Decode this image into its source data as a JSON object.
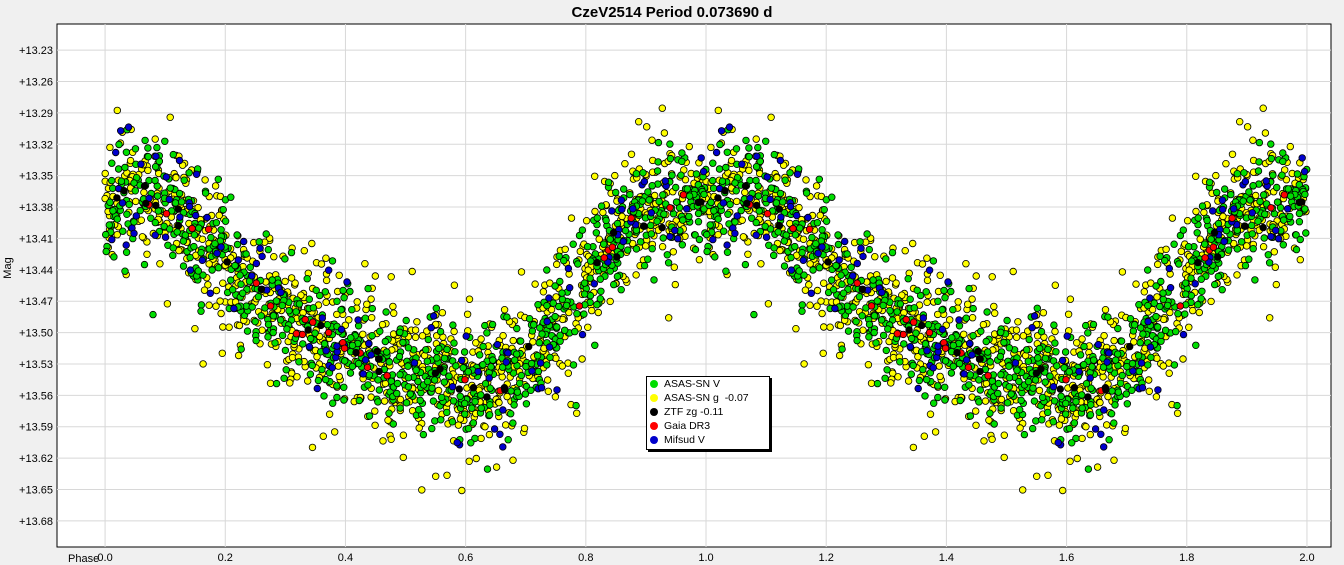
{
  "chart_data": {
    "type": "scatter",
    "title": "CzeV2514 Period 0.073690 d",
    "xlabel": "Phase",
    "ylabel": "Mag",
    "xlim": [
      -0.08,
      2.04
    ],
    "ylim": [
      13.705,
      13.205
    ],
    "y_inverted": true,
    "grid": true,
    "x_ticks": [
      "0.0",
      "0.2",
      "0.4",
      "0.6",
      "0.8",
      "1.0",
      "1.2",
      "1.4",
      "1.6",
      "1.8",
      "2.0"
    ],
    "y_ticks": [
      "+13.23",
      "+13.26",
      "+13.29",
      "+13.32",
      "+13.35",
      "+13.38",
      "+13.41",
      "+13.44",
      "+13.47",
      "+13.50",
      "+13.53",
      "+13.56",
      "+13.59",
      "+13.62",
      "+13.65",
      "+13.68"
    ],
    "legend_position": "center-bottom",
    "mean_curve": {
      "phase": [
        0.0,
        0.05,
        0.1,
        0.15,
        0.2,
        0.25,
        0.3,
        0.35,
        0.4,
        0.45,
        0.5,
        0.55,
        0.6,
        0.65,
        0.7,
        0.75,
        0.8,
        0.85,
        0.9,
        0.95,
        1.0
      ],
      "mag": [
        13.38,
        13.37,
        13.375,
        13.4,
        13.43,
        13.46,
        13.48,
        13.5,
        13.51,
        13.525,
        13.54,
        13.545,
        13.55,
        13.55,
        13.53,
        13.49,
        13.45,
        13.41,
        13.385,
        13.375,
        13.38
      ]
    },
    "series": [
      {
        "name": "ASAS-SN V",
        "color": "#00dd00",
        "count": 1700,
        "scatter": 0.028
      },
      {
        "name": "ASAS-SN g  -0.07",
        "color": "#ffff00",
        "count": 2000,
        "scatter": 0.032
      },
      {
        "name": "ZTF zg -0.11",
        "color": "#000000",
        "count": 60,
        "scatter": 0.008
      },
      {
        "name": "Gaia DR3",
        "color": "#ff0000",
        "count": 50,
        "scatter": 0.008
      },
      {
        "name": "Mifsud V",
        "color": "#0000cc",
        "count": 220,
        "scatter": 0.03
      }
    ]
  }
}
